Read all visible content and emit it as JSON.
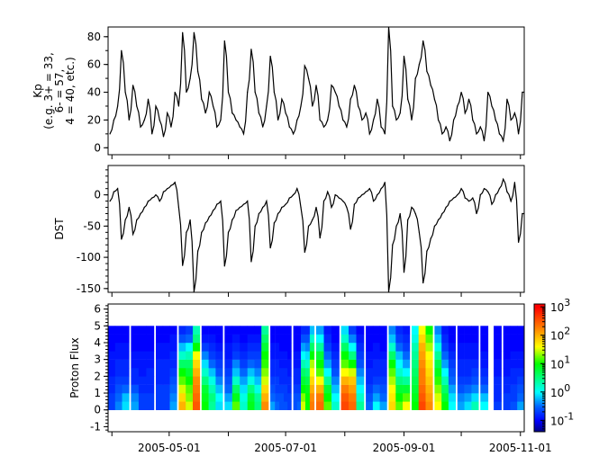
{
  "chart_data": [
    {
      "type": "line",
      "ylabel_lines": [
        "Kp",
        "(e.g. 3+ = 33,",
        "6- = 57,",
        "4 = 40, etc.)"
      ],
      "ylim": [
        -5,
        87
      ],
      "yticks": [
        0,
        20,
        40,
        60,
        80
      ],
      "x_start": "2005-03-31",
      "x_step_days": 2,
      "values": [
        10,
        20,
        30,
        70,
        40,
        20,
        45,
        30,
        15,
        20,
        35,
        10,
        30,
        20,
        8,
        25,
        15,
        40,
        30,
        83,
        40,
        50,
        83,
        55,
        35,
        25,
        40,
        30,
        15,
        20,
        77,
        40,
        25,
        20,
        15,
        10,
        40,
        71,
        40,
        25,
        15,
        30,
        66,
        40,
        20,
        35,
        25,
        15,
        10,
        20,
        30,
        59,
        50,
        30,
        45,
        20,
        15,
        20,
        45,
        40,
        30,
        20,
        15,
        35,
        45,
        30,
        20,
        25,
        10,
        20,
        35,
        15,
        10,
        87,
        30,
        20,
        25,
        66,
        35,
        20,
        50,
        60,
        77,
        55,
        45,
        35,
        20,
        10,
        15,
        5,
        20,
        30,
        40,
        25,
        35,
        20,
        10,
        15,
        5,
        40,
        30,
        20,
        10,
        5,
        35,
        20,
        25,
        10,
        40
      ]
    },
    {
      "type": "line",
      "ylabel": "DST",
      "ylim": [
        -156,
        47
      ],
      "yticks": [
        0,
        -50,
        -100,
        -150
      ],
      "x_start": "2005-03-31",
      "x_step_days": 2,
      "values": [
        -10,
        5,
        10,
        -71,
        -40,
        -20,
        -63,
        -40,
        -30,
        -20,
        -10,
        -5,
        0,
        -10,
        5,
        10,
        15,
        20,
        -20,
        -113,
        -60,
        -40,
        -155,
        -90,
        -60,
        -45,
        -35,
        -25,
        -15,
        -10,
        -114,
        -60,
        -40,
        -25,
        -20,
        -15,
        -10,
        -107,
        -50,
        -30,
        -20,
        -10,
        -85,
        -45,
        -30,
        -20,
        -15,
        -5,
        0,
        10,
        -20,
        -92,
        -50,
        -40,
        -20,
        -69,
        -10,
        5,
        -20,
        0,
        -5,
        -10,
        -20,
        -55,
        -15,
        -5,
        0,
        5,
        10,
        -10,
        0,
        10,
        20,
        -155,
        -80,
        -50,
        -30,
        -124,
        -40,
        -20,
        -30,
        -60,
        -141,
        -90,
        -70,
        -50,
        -40,
        -30,
        -20,
        -10,
        -5,
        0,
        10,
        -5,
        -10,
        -5,
        -30,
        0,
        10,
        5,
        -15,
        0,
        10,
        25,
        5,
        -10,
        20,
        -76,
        -30
      ]
    },
    {
      "type": "heatmap",
      "ylabel": "Proton Flux",
      "ylim": [
        -1.3,
        6.3
      ],
      "yticks": [
        -1,
        0,
        1,
        2,
        3,
        4,
        5,
        6
      ],
      "y_bins": [
        0,
        5
      ],
      "y_bin_count": 10,
      "value_scale": "log10",
      "colorbar": {
        "range_log10": [
          -1.4,
          3.1
        ],
        "tick_exponents": [
          -1,
          0,
          1,
          2,
          3
        ],
        "tick_base": "10",
        "colormap": "jet"
      },
      "segments": [
        {
          "start": "2005-03-30",
          "end": "2005-04-09",
          "columns": [
            [
              -0.7,
              -0.7,
              -0.8,
              -0.8,
              -0.9,
              -0.9,
              -0.9,
              -1,
              -1,
              -1
            ],
            [
              -0.4,
              -0.5,
              -0.6,
              -0.7,
              -0.8,
              -0.8,
              -0.9,
              -0.9,
              -1,
              -1
            ],
            [
              -0.1,
              -0.2,
              -0.5,
              -0.7,
              -0.8,
              -0.8,
              -0.9,
              -0.9,
              -1,
              -1
            ]
          ]
        },
        {
          "start": "2005-04-11",
          "end": "2005-04-22",
          "columns": [
            [
              -0.3,
              -0.4,
              -0.6,
              -0.8,
              -0.8,
              -0.9,
              -0.9,
              -1,
              -1,
              -1
            ],
            [
              -0.7,
              -0.7,
              -0.8,
              -0.8,
              -0.9,
              -0.9,
              -0.9,
              -1,
              -1,
              -1
            ],
            [
              -0.7,
              -0.7,
              -0.8,
              -0.8,
              -0.8,
              -0.9,
              -0.9,
              -1,
              -1,
              -1
            ]
          ]
        },
        {
          "start": "2005-04-24",
          "end": "2005-05-04",
          "columns": [
            [
              -0.7,
              -0.7,
              -0.7,
              -0.8,
              -0.8,
              -0.8,
              -0.9,
              -0.9,
              -1,
              -1
            ],
            [
              -0.7,
              -0.7,
              -0.7,
              -0.8,
              -0.8,
              -0.8,
              -0.9,
              -0.9,
              -1,
              -1
            ],
            [
              -0.3,
              -0.4,
              -0.5,
              -0.6,
              -0.7,
              -0.8,
              -0.8,
              -0.9,
              -0.9,
              -1
            ]
          ]
        },
        {
          "start": "2005-05-06",
          "end": "2005-05-16",
          "columns": [
            [
              2.0,
              1.8,
              1.5,
              1.2,
              1.0,
              0.6,
              0.2,
              -0.2,
              -0.6,
              -0.8
            ],
            [
              1.5,
              1.3,
              1.2,
              1.0,
              0.8,
              0.6,
              0.3,
              0,
              -0.5,
              -0.7
            ],
            [
              2.5,
              2.4,
              2.3,
              2.2,
              2.0,
              1.8,
              1.6,
              1.0,
              0.5,
              0.3
            ]
          ]
        },
        {
          "start": "2005-05-18",
          "end": "2005-05-28",
          "columns": [
            [
              1.0,
              0.9,
              0.8,
              0.5,
              0.2,
              -0.1,
              -0.4,
              -0.7,
              -0.9,
              -1
            ],
            [
              0.4,
              0.5,
              0.3,
              0.1,
              -0.2,
              -0.5,
              -0.7,
              -0.8,
              -0.9,
              -1
            ],
            [
              -0.1,
              0,
              -0.2,
              -0.4,
              -0.6,
              -0.7,
              -0.8,
              -0.9,
              -1,
              -1
            ]
          ]
        },
        {
          "start": "2005-05-30",
          "end": "2005-06-10",
          "columns": [
            [
              -0.1,
              -0.3,
              -0.5,
              -0.6,
              -0.7,
              -0.8,
              -0.9,
              -0.9,
              -1,
              -1
            ],
            [
              1.2,
              0.9,
              0.6,
              0.2,
              -0.2,
              -0.4,
              -0.7,
              -0.8,
              -0.9,
              -1
            ],
            [
              0.2,
              0.1,
              -0.1,
              -0.3,
              -0.5,
              -0.7,
              -0.8,
              -0.9,
              -1,
              -1
            ]
          ]
        },
        {
          "start": "2005-06-11",
          "end": "2005-06-21",
          "columns": [
            [
              0.9,
              0.8,
              0.5,
              0.1,
              -0.2,
              -0.5,
              -0.7,
              -0.8,
              -0.9,
              -1
            ],
            [
              0.5,
              0.4,
              0.1,
              -0.2,
              -0.4,
              -0.6,
              -0.7,
              -0.8,
              -0.9,
              -1
            ],
            [
              2.2,
              2.0,
              1.8,
              1.5,
              1.3,
              1.1,
              1.0,
              0.8,
              0.6,
              0.4
            ]
          ]
        },
        {
          "start": "2005-06-23",
          "end": "2005-06-29",
          "columns": [
            [
              -0.3,
              -0.5,
              -0.6,
              -0.7,
              -0.8,
              -0.8,
              -0.9,
              -0.9,
              -1,
              -1
            ],
            [
              -0.5,
              -0.6,
              -0.7,
              -0.7,
              -0.8,
              -0.8,
              -0.9,
              -0.9,
              -1,
              -1
            ],
            [
              -0.6,
              -0.6,
              -0.7,
              -0.8,
              -0.8,
              -0.9,
              -0.9,
              -1,
              -1,
              -1
            ]
          ]
        },
        {
          "start": "2005-06-30",
          "end": "2005-07-03",
          "columns": [
            [
              -0.6,
              -0.7,
              -0.7,
              -0.8,
              -0.8,
              -0.9,
              -0.9,
              -1,
              -1,
              -1
            ],
            [
              -0.7,
              -0.7,
              -0.8,
              -0.8,
              -0.9,
              -0.9,
              -1,
              -1,
              -1,
              -1
            ]
          ]
        },
        {
          "start": "2005-07-05",
          "end": "2005-07-08",
          "columns": [
            [
              -0.6,
              -0.6,
              -0.7,
              -0.8,
              -0.8,
              -0.9,
              -0.9,
              -1,
              -1,
              -1
            ],
            [
              -0.5,
              -0.6,
              -0.7,
              -0.8,
              -0.8,
              -0.9,
              -0.9,
              -1,
              -1,
              -1
            ]
          ]
        },
        {
          "start": "2005-07-09",
          "end": "2005-07-15",
          "columns": [
            [
              1.5,
              1.3,
              1.0,
              0.8,
              0.6,
              0.3,
              0,
              -0.3,
              -0.6,
              -0.8
            ],
            [
              1.0,
              1.0,
              0.9,
              0.7,
              0.5,
              0.2,
              -0.1,
              -0.4,
              -0.6,
              -0.8
            ],
            [
              2.3,
              2.2,
              2.0,
              1.8,
              1.6,
              1.4,
              1.0,
              0.6,
              0.2,
              -0.2
            ]
          ]
        },
        {
          "start": "2005-07-17",
          "end": "2005-07-28",
          "columns": [
            [
              2.4,
              2.3,
              2.0,
              1.6,
              1.2,
              1.0,
              0.8,
              0.4,
              0,
              -0.3
            ],
            [
              1.2,
              1.0,
              0.8,
              0.4,
              0,
              -0.3,
              -0.5,
              -0.7,
              -0.8,
              -0.9
            ],
            [
              0.2,
              0,
              -0.2,
              -0.4,
              -0.6,
              -0.7,
              -0.8,
              -0.9,
              -1,
              -1
            ]
          ]
        },
        {
          "start": "2005-07-30",
          "end": "2005-08-10",
          "columns": [
            [
              2.6,
              2.5,
              2.3,
              2.0,
              1.6,
              1.2,
              1.0,
              0.6,
              0.2,
              -0.1
            ],
            [
              2.4,
              2.3,
              2.1,
              1.9,
              1.5,
              1.0,
              0.5,
              0,
              -0.4,
              -0.7
            ],
            [
              0.4,
              0.2,
              0,
              -0.2,
              -0.4,
              -0.6,
              -0.7,
              -0.8,
              -0.9,
              -1
            ]
          ]
        },
        {
          "start": "2005-08-12",
          "end": "2005-08-22",
          "columns": [
            [
              -0.5,
              -0.6,
              -0.7,
              -0.8,
              -0.8,
              -0.9,
              -0.9,
              -1,
              -1,
              -1
            ],
            [
              0,
              -0.3,
              -0.5,
              -0.7,
              -0.8,
              -0.8,
              -0.9,
              -0.9,
              -1,
              -1
            ],
            [
              -0.3,
              -0.5,
              -0.6,
              -0.7,
              -0.8,
              -0.8,
              -0.9,
              -1,
              -1,
              -1
            ]
          ]
        },
        {
          "start": "2005-08-24",
          "end": "2005-09-03",
          "columns": [
            [
              1.8,
              1.7,
              1.6,
              1.4,
              1.2,
              1.0,
              0.6,
              0.2,
              -0.2,
              -0.4
            ],
            [
              1.2,
              1.0,
              0.8,
              0.5,
              0.2,
              0,
              -0.2,
              -0.5,
              -0.7,
              -0.8
            ],
            [
              1.6,
              1.2,
              0.8,
              0.4,
              0,
              -0.3,
              -0.5,
              -0.7,
              -0.8,
              -0.9
            ]
          ]
        },
        {
          "start": "2005-09-05",
          "end": "2005-09-15",
          "columns": [
            [
              1.0,
              0.9,
              0.8,
              0.7,
              0.6,
              0.5,
              0.4,
              0.3,
              0.1,
              0
            ],
            [
              2.6,
              2.5,
              2.4,
              2.3,
              2.3,
              2.2,
              2.1,
              2.0,
              1.8,
              1.6
            ],
            [
              2.2,
              2.1,
              2.0,
              1.9,
              1.8,
              1.7,
              1.6,
              1.4,
              1.2,
              1.0
            ]
          ]
        },
        {
          "start": "2005-09-17",
          "end": "2005-09-27",
          "columns": [
            [
              1.6,
              1.5,
              1.3,
              1.1,
              0.9,
              0.7,
              0.4,
              0.1,
              -0.2,
              -0.4
            ],
            [
              1.0,
              0.8,
              0.6,
              0.3,
              0,
              -0.3,
              -0.5,
              -0.7,
              -0.8,
              -0.9
            ],
            [
              0,
              -0.1,
              -0.3,
              -0.5,
              -0.6,
              -0.7,
              -0.8,
              -0.9,
              -1,
              -1
            ]
          ]
        },
        {
          "start": "2005-09-29",
          "end": "2005-10-09",
          "columns": [
            [
              -0.3,
              -0.4,
              -0.6,
              -0.7,
              -0.8,
              -0.8,
              -0.9,
              -0.9,
              -1,
              -1
            ],
            [
              -0.1,
              -0.3,
              -0.5,
              -0.7,
              -0.8,
              -0.8,
              -0.9,
              -0.9,
              -1,
              -1
            ],
            [
              0.3,
              -0.1,
              -0.4,
              -0.6,
              -0.7,
              -0.8,
              -0.9,
              -0.9,
              -1,
              -1
            ]
          ]
        },
        {
          "start": "2005-10-11",
          "end": "2005-10-14",
          "columns": [
            [
              0,
              -0.2,
              -0.5,
              -0.7,
              -0.8,
              -0.9,
              -0.9,
              -1,
              -1,
              -1
            ]
          ]
        },
        {
          "start": "2005-10-18",
          "end": "2005-10-21",
          "columns": [
            [
              -0.7,
              -0.8,
              -0.8,
              -0.8,
              -0.9,
              -0.9,
              -1,
              -1,
              -1,
              -1
            ]
          ]
        },
        {
          "start": "2005-10-23",
          "end": "2005-11-02",
          "columns": [
            [
              -0.7,
              -0.7,
              -0.8,
              -0.8,
              -0.9,
              -0.9,
              -1,
              -1,
              -1,
              -1
            ],
            [
              -0.6,
              -0.7,
              -0.7,
              -0.8,
              -0.8,
              -0.9,
              -0.9,
              -1,
              -1,
              -1
            ],
            [
              -0.3,
              -0.5,
              -0.6,
              -0.7,
              -0.8,
              -0.9,
              -0.9,
              -1,
              -1,
              -1
            ]
          ]
        }
      ]
    }
  ],
  "x_axis": {
    "type": "date",
    "xlim": [
      "2005-03-30",
      "2005-11-03"
    ],
    "major_ticks": [
      "2005-04-01",
      "2005-05-01",
      "2005-06-01",
      "2005-07-01",
      "2005-08-01",
      "2005-09-01",
      "2005-10-01",
      "2005-11-01"
    ],
    "tick_labels": [
      "2005-05-01",
      "2005-07-01",
      "2005-09-01",
      "2005-11-01"
    ]
  },
  "colors": {
    "line": "#000000",
    "axes": "#000000",
    "background": "#ffffff"
  }
}
